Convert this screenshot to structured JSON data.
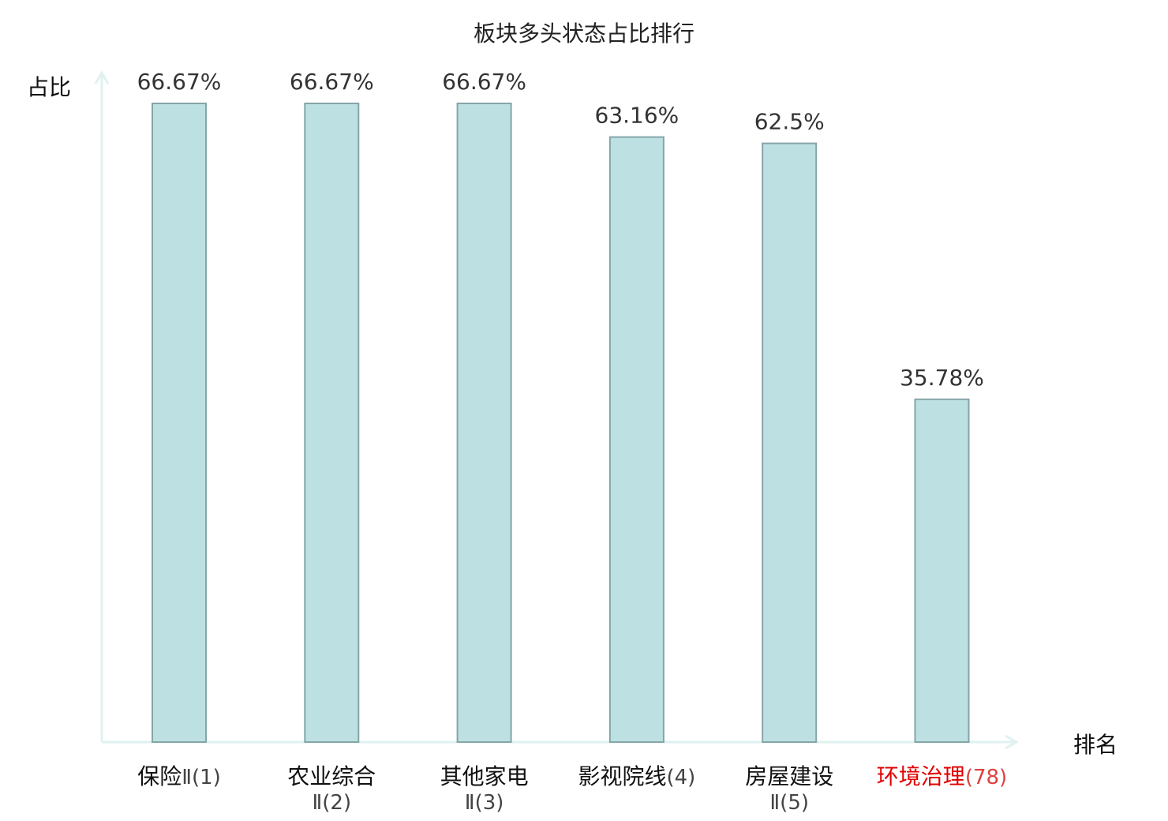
{
  "chart_data": {
    "type": "bar",
    "title": "板块多头状态占比排行",
    "ylabel": "占比",
    "xlabel": "排名",
    "ylim": [
      0,
      70
    ],
    "grid": false,
    "categories": [
      {
        "name": "保险",
        "suffix": "Ⅱ(1)",
        "wrap": false,
        "highlight": false
      },
      {
        "name": "农业综合",
        "suffix": "Ⅱ(2)",
        "wrap": true,
        "highlight": false
      },
      {
        "name": "其他家电",
        "suffix": "Ⅱ(3)",
        "wrap": true,
        "highlight": false
      },
      {
        "name": "影视院线",
        "suffix": "(4)",
        "wrap": false,
        "highlight": false
      },
      {
        "name": "房屋建设",
        "suffix": "Ⅱ(5)",
        "wrap": true,
        "highlight": false
      },
      {
        "name": "环境治理",
        "suffix": "(78)",
        "wrap": false,
        "highlight": true
      }
    ],
    "values": [
      66.67,
      66.67,
      66.67,
      63.16,
      62.5,
      35.78
    ],
    "value_labels": [
      "66.67%",
      "66.67%",
      "66.67%",
      "63.16%",
      "62.5%",
      "35.78%"
    ],
    "colors": {
      "bar_fill": "#bde1e3",
      "bar_stroke": "#86a5a7",
      "axis": "#dff2ef",
      "highlight_label": "#e00000"
    }
  }
}
